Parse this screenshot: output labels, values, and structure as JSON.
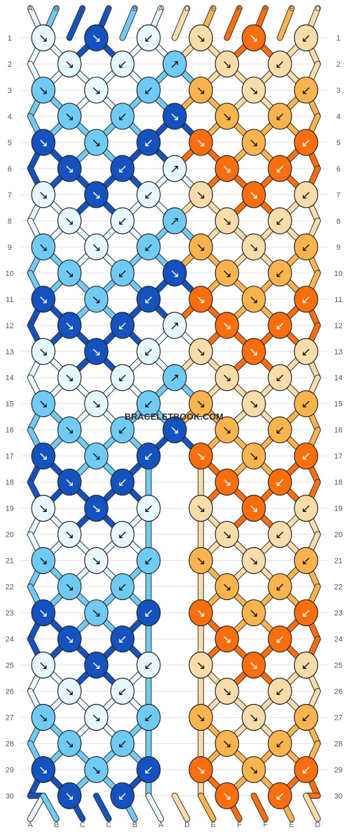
{
  "watermark": "BRACELETBOOK.COM",
  "colors": {
    "A": "#e6f7fe",
    "B": "#6fcbf4",
    "C": "#1453bf",
    "D": "#f8dcaa",
    "E": "#fab44e",
    "F": "#fa6e0e"
  },
  "strings_top": [
    "A",
    "B",
    "C",
    "C",
    "B",
    "A",
    "D",
    "E",
    "F",
    "F",
    "E",
    "D"
  ],
  "strings_bottom": [
    "A",
    "B",
    "C",
    "C",
    "B",
    "A",
    "D",
    "E",
    "F",
    "F",
    "E",
    "D"
  ],
  "row_numbers": [
    "1",
    "2",
    "3",
    "4",
    "5",
    "6",
    "7",
    "8",
    "9",
    "10",
    "11",
    "12",
    "13",
    "14",
    "15",
    "16",
    "17",
    "18",
    "19",
    "20",
    "21",
    "22",
    "23",
    "24",
    "25",
    "26",
    "27",
    "28",
    "29",
    "30"
  ],
  "knots": [
    [
      [
        "A",
        "↘"
      ],
      [
        "C",
        "↘"
      ],
      [
        "A",
        "↙"
      ],
      [
        "D",
        "↘"
      ],
      [
        "F",
        "↘"
      ],
      [
        "D",
        "↙"
      ]
    ],
    [
      [
        "A",
        "↘"
      ],
      [
        "A",
        "↙"
      ],
      [
        "B",
        "↗"
      ],
      [
        "D",
        "↘"
      ],
      [
        "D",
        "↙"
      ]
    ],
    [
      [
        "B",
        "↘"
      ],
      [
        "A",
        "↘"
      ],
      [
        "B",
        "↙"
      ],
      [
        "E",
        "↘"
      ],
      [
        "D",
        "↘"
      ],
      [
        "E",
        "↙"
      ]
    ],
    [
      [
        "B",
        "↘"
      ],
      [
        "B",
        "↙"
      ],
      [
        "C",
        "↘"
      ],
      [
        "E",
        "↘"
      ],
      [
        "E",
        "↙"
      ]
    ],
    [
      [
        "C",
        "↘"
      ],
      [
        "B",
        "↘"
      ],
      [
        "C",
        "↙"
      ],
      [
        "F",
        "↘"
      ],
      [
        "E",
        "↘"
      ],
      [
        "F",
        "↙"
      ]
    ],
    [
      [
        "C",
        "↘"
      ],
      [
        "C",
        "↙"
      ],
      [
        "A",
        "↗"
      ],
      [
        "F",
        "↘"
      ],
      [
        "F",
        "↙"
      ]
    ],
    [
      [
        "A",
        "↘"
      ],
      [
        "C",
        "↘"
      ],
      [
        "A",
        "↙"
      ],
      [
        "D",
        "↘"
      ],
      [
        "F",
        "↘"
      ],
      [
        "D",
        "↙"
      ]
    ],
    [
      [
        "A",
        "↘"
      ],
      [
        "A",
        "↙"
      ],
      [
        "B",
        "↗"
      ],
      [
        "D",
        "↘"
      ],
      [
        "D",
        "↙"
      ]
    ],
    [
      [
        "B",
        "↘"
      ],
      [
        "A",
        "↘"
      ],
      [
        "B",
        "↙"
      ],
      [
        "E",
        "↘"
      ],
      [
        "D",
        "↘"
      ],
      [
        "E",
        "↙"
      ]
    ],
    [
      [
        "B",
        "↘"
      ],
      [
        "B",
        "↙"
      ],
      [
        "C",
        "↘"
      ],
      [
        "E",
        "↘"
      ],
      [
        "E",
        "↙"
      ]
    ],
    [
      [
        "C",
        "↘"
      ],
      [
        "B",
        "↘"
      ],
      [
        "C",
        "↙"
      ],
      [
        "F",
        "↘"
      ],
      [
        "E",
        "↘"
      ],
      [
        "F",
        "↙"
      ]
    ],
    [
      [
        "C",
        "↘"
      ],
      [
        "C",
        "↙"
      ],
      [
        "A",
        "↗"
      ],
      [
        "F",
        "↘"
      ],
      [
        "F",
        "↙"
      ]
    ],
    [
      [
        "A",
        "↘"
      ],
      [
        "C",
        "↘"
      ],
      [
        "A",
        "↙"
      ],
      [
        "D",
        "↘"
      ],
      [
        "F",
        "↘"
      ],
      [
        "D",
        "↙"
      ]
    ],
    [
      [
        "A",
        "↘"
      ],
      [
        "A",
        "↙"
      ],
      [
        "B",
        "↗"
      ],
      [
        "D",
        "↘"
      ],
      [
        "D",
        "↙"
      ]
    ],
    [
      [
        "B",
        "↘"
      ],
      [
        "A",
        "↘"
      ],
      [
        "B",
        "↙"
      ],
      [
        "E",
        "↘"
      ],
      [
        "D",
        "↘"
      ],
      [
        "E",
        "↙"
      ]
    ],
    [
      [
        "B",
        "↘"
      ],
      [
        "B",
        "↙"
      ],
      [
        "C",
        "↘"
      ],
      [
        "E",
        "↘"
      ],
      [
        "E",
        "↙"
      ]
    ],
    [
      [
        "C",
        "↘"
      ],
      [
        "B",
        "↘"
      ],
      [
        "C",
        "↙"
      ],
      [
        "F",
        "↘"
      ],
      [
        "E",
        "↘"
      ],
      [
        "F",
        "↙"
      ]
    ],
    [
      [
        "C",
        "↘"
      ],
      [
        "C",
        "↙"
      ],
      [
        "F",
        "↘"
      ],
      [
        "F",
        "↙"
      ]
    ],
    [
      [
        "A",
        "↘"
      ],
      [
        "C",
        "↘"
      ],
      [
        "A",
        "↙"
      ],
      [
        "D",
        "↘"
      ],
      [
        "F",
        "↘"
      ],
      [
        "D",
        "↙"
      ]
    ],
    [
      [
        "A",
        "↘"
      ],
      [
        "A",
        "↙"
      ],
      [
        "D",
        "↘"
      ],
      [
        "D",
        "↙"
      ]
    ],
    [
      [
        "B",
        "↘"
      ],
      [
        "A",
        "↘"
      ],
      [
        "B",
        "↙"
      ],
      [
        "E",
        "↘"
      ],
      [
        "D",
        "↘"
      ],
      [
        "E",
        "↙"
      ]
    ],
    [
      [
        "B",
        "↘"
      ],
      [
        "B",
        "↙"
      ],
      [
        "E",
        "↘"
      ],
      [
        "E",
        "↙"
      ]
    ],
    [
      [
        "C",
        "↘"
      ],
      [
        "B",
        "↘"
      ],
      [
        "C",
        "↙"
      ],
      [
        "F",
        "↘"
      ],
      [
        "E",
        "↘"
      ],
      [
        "F",
        "↙"
      ]
    ],
    [
      [
        "C",
        "↘"
      ],
      [
        "C",
        "↙"
      ],
      [
        "F",
        "↘"
      ],
      [
        "F",
        "↙"
      ]
    ],
    [
      [
        "A",
        "↘"
      ],
      [
        "C",
        "↘"
      ],
      [
        "A",
        "↙"
      ],
      [
        "D",
        "↘"
      ],
      [
        "F",
        "↘"
      ],
      [
        "D",
        "↙"
      ]
    ],
    [
      [
        "A",
        "↘"
      ],
      [
        "A",
        "↙"
      ],
      [
        "D",
        "↘"
      ],
      [
        "D",
        "↙"
      ]
    ],
    [
      [
        "B",
        "↘"
      ],
      [
        "A",
        "↘"
      ],
      [
        "B",
        "↙"
      ],
      [
        "E",
        "↘"
      ],
      [
        "D",
        "↘"
      ],
      [
        "E",
        "↙"
      ]
    ],
    [
      [
        "B",
        "↘"
      ],
      [
        "B",
        "↙"
      ],
      [
        "E",
        "↘"
      ],
      [
        "E",
        "↙"
      ]
    ],
    [
      [
        "C",
        "↘"
      ],
      [
        "B",
        "↘"
      ],
      [
        "C",
        "↙"
      ],
      [
        "F",
        "↘"
      ],
      [
        "E",
        "↘"
      ],
      [
        "F",
        "↙"
      ]
    ],
    [
      [
        "C",
        "↘"
      ],
      [
        "C",
        "↙"
      ],
      [
        "F",
        "↘"
      ],
      [
        "F",
        "↙"
      ]
    ]
  ]
}
